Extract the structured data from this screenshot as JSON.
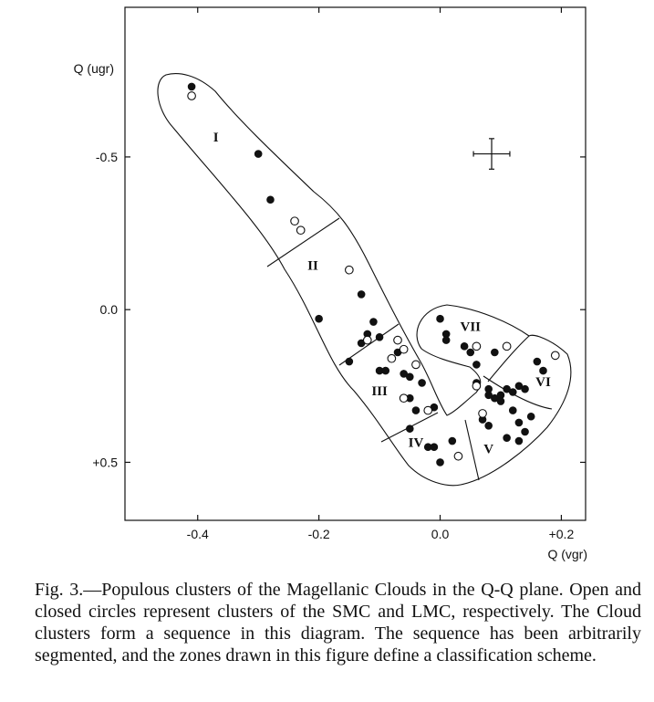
{
  "chart_data": {
    "type": "scatter",
    "title": "",
    "xlabel": "Q (vgr)",
    "ylabel": "Q (ugr)",
    "xlim": [
      -0.52,
      0.24
    ],
    "ylim": [
      -0.99,
      0.69
    ],
    "y_inverted": true,
    "grid": false,
    "x_ticks": [
      {
        "value": -0.4,
        "label": "-0.4"
      },
      {
        "value": -0.2,
        "label": "-0.2"
      },
      {
        "value": 0.0,
        "label": "0.0"
      },
      {
        "value": 0.2,
        "label": "+0.2"
      }
    ],
    "y_ticks": [
      {
        "value": -0.5,
        "label": "-0.5"
      },
      {
        "value": 0.0,
        "label": "0.0"
      },
      {
        "value": 0.5,
        "label": "+0.5"
      }
    ],
    "series": [
      {
        "name": "LMC",
        "marker": "closed",
        "points": [
          [
            -0.41,
            -0.73
          ],
          [
            -0.3,
            -0.51
          ],
          [
            -0.28,
            -0.36
          ],
          [
            -0.2,
            0.03
          ],
          [
            -0.13,
            -0.05
          ],
          [
            -0.11,
            0.04
          ],
          [
            -0.12,
            0.08
          ],
          [
            -0.13,
            0.11
          ],
          [
            -0.1,
            0.09
          ],
          [
            -0.15,
            0.17
          ],
          [
            -0.1,
            0.2
          ],
          [
            -0.09,
            0.2
          ],
          [
            -0.07,
            0.14
          ],
          [
            -0.06,
            0.21
          ],
          [
            -0.05,
            0.22
          ],
          [
            -0.05,
            0.29
          ],
          [
            -0.03,
            0.24
          ],
          [
            -0.01,
            0.32
          ],
          [
            -0.04,
            0.33
          ],
          [
            -0.05,
            0.39
          ],
          [
            -0.02,
            0.45
          ],
          [
            -0.01,
            0.45
          ],
          [
            0.0,
            0.5
          ],
          [
            0.02,
            0.43
          ],
          [
            0.0,
            0.03
          ],
          [
            0.01,
            0.08
          ],
          [
            0.01,
            0.1
          ],
          [
            0.05,
            0.14
          ],
          [
            0.04,
            0.12
          ],
          [
            0.09,
            0.14
          ],
          [
            0.06,
            0.18
          ],
          [
            0.06,
            0.24
          ],
          [
            0.08,
            0.26
          ],
          [
            0.08,
            0.28
          ],
          [
            0.09,
            0.29
          ],
          [
            0.1,
            0.28
          ],
          [
            0.11,
            0.26
          ],
          [
            0.1,
            0.3
          ],
          [
            0.12,
            0.27
          ],
          [
            0.13,
            0.25
          ],
          [
            0.14,
            0.26
          ],
          [
            0.16,
            0.17
          ],
          [
            0.17,
            0.2
          ],
          [
            0.15,
            0.35
          ],
          [
            0.12,
            0.33
          ],
          [
            0.13,
            0.37
          ],
          [
            0.14,
            0.4
          ],
          [
            0.13,
            0.43
          ],
          [
            0.11,
            0.42
          ],
          [
            0.08,
            0.38
          ],
          [
            0.07,
            0.36
          ]
        ]
      },
      {
        "name": "SMC",
        "marker": "open",
        "points": [
          [
            -0.41,
            -0.7
          ],
          [
            -0.24,
            -0.29
          ],
          [
            -0.23,
            -0.26
          ],
          [
            -0.15,
            -0.13
          ],
          [
            -0.12,
            0.1
          ],
          [
            -0.08,
            0.16
          ],
          [
            -0.07,
            0.1
          ],
          [
            -0.06,
            0.13
          ],
          [
            -0.04,
            0.18
          ],
          [
            -0.06,
            0.29
          ],
          [
            -0.02,
            0.33
          ],
          [
            0.03,
            0.48
          ],
          [
            0.07,
            0.34
          ],
          [
            0.06,
            0.25
          ],
          [
            0.06,
            0.12
          ],
          [
            0.11,
            0.12
          ],
          [
            0.19,
            0.15
          ]
        ]
      }
    ],
    "zones": [
      {
        "label": "I",
        "x": -0.37,
        "y": -0.55
      },
      {
        "label": "II",
        "x": -0.21,
        "y": -0.13
      },
      {
        "label": "III",
        "x": -0.1,
        "y": 0.28
      },
      {
        "label": "IV",
        "x": -0.04,
        "y": 0.45
      },
      {
        "label": "V",
        "x": 0.08,
        "y": 0.47
      },
      {
        "label": "VI",
        "x": 0.17,
        "y": 0.25
      },
      {
        "label": "VII",
        "x": 0.05,
        "y": 0.07
      }
    ],
    "error_bar": {
      "x": 0.085,
      "y": -0.51,
      "dx": 0.03,
      "dy": 0.05
    }
  },
  "caption": "Fig. 3.—Populous clusters of the Magellanic Clouds in the Q-Q plane. Open and closed circles represent clusters of the SMC and LMC, respectively. The Cloud clusters form a sequence in this diagram. The sequence has been arbitrarily segmented, and the zones drawn in this figure define a classification scheme."
}
